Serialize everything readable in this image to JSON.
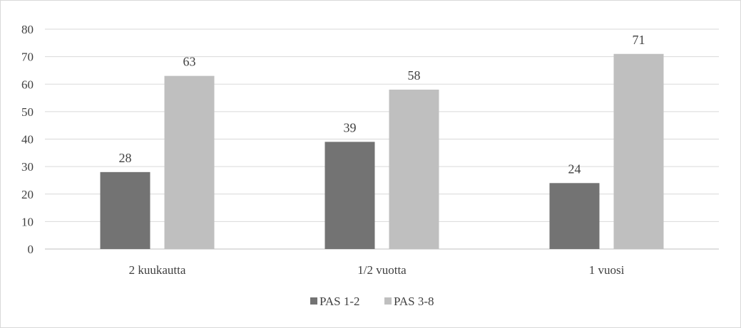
{
  "chart_data": {
    "type": "bar",
    "categories": [
      "2 kuukautta",
      "1/2 vuotta",
      "1 vuosi"
    ],
    "series": [
      {
        "name": "PAS 1-2",
        "values": [
          28,
          39,
          24
        ],
        "color": "#737373"
      },
      {
        "name": "PAS 3-8",
        "values": [
          63,
          58,
          71
        ],
        "color": "#bfbfbf"
      }
    ],
    "ylim": [
      0,
      80
    ],
    "yticks": [
      0,
      10,
      20,
      30,
      40,
      50,
      60,
      70,
      80
    ],
    "grid": true,
    "data_labels": true,
    "legend_position": "bottom",
    "gridline_color": "#d9d9d9",
    "axis_color": "#bfbfbf"
  }
}
